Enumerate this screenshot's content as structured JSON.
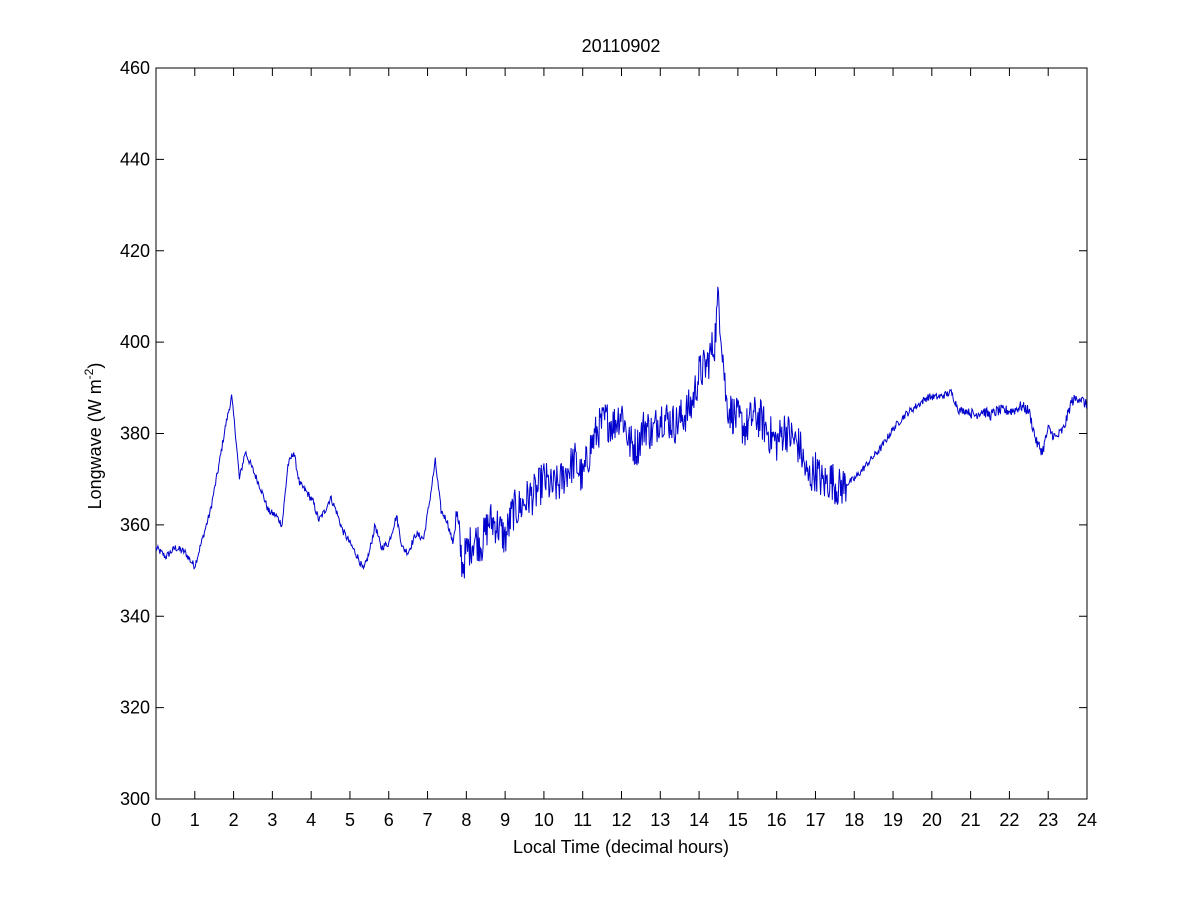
{
  "chart_data": {
    "type": "line",
    "title": "20110902",
    "xlabel": "Local Time (decimal hours)",
    "ylabel": "Longwave (W m-2)",
    "ylabel_parts": {
      "main": "Longwave (W m",
      "sup": "-2",
      "tail": ")"
    },
    "xlim": [
      0,
      24
    ],
    "ylim": [
      300,
      460
    ],
    "xticks": [
      0,
      1,
      2,
      3,
      4,
      5,
      6,
      7,
      8,
      9,
      10,
      11,
      12,
      13,
      14,
      15,
      16,
      17,
      18,
      19,
      20,
      21,
      22,
      23,
      24
    ],
    "yticks": [
      300,
      320,
      340,
      360,
      380,
      400,
      420,
      440,
      460
    ],
    "grid": false,
    "line_color": "#0000cc",
    "series": [
      {
        "x": [
          0,
          0.25,
          0.5,
          0.75,
          0.9,
          1.0,
          1.2,
          1.4,
          1.6,
          1.8,
          1.95,
          2.05,
          2.15,
          2.3,
          2.5,
          2.7,
          2.9,
          3.1,
          3.25,
          3.4,
          3.55,
          3.7,
          3.9,
          4.05,
          4.2,
          4.35,
          4.5,
          4.65,
          4.8,
          5.0,
          5.2,
          5.35,
          5.5,
          5.65,
          5.8,
          6.0,
          6.2,
          6.35,
          6.5,
          6.7,
          6.9,
          7.05,
          7.2,
          7.35,
          7.5,
          7.65,
          7.75,
          7.9,
          8.0,
          8.2,
          8.4,
          8.6,
          8.8,
          9.0,
          9.2,
          9.4,
          9.6,
          9.8,
          10.0,
          10.2,
          10.4,
          10.6,
          10.8,
          11.0,
          11.2,
          11.4,
          11.6,
          11.8,
          12.0,
          12.2,
          12.4,
          12.6,
          12.8,
          13.0,
          13.2,
          13.4,
          13.6,
          13.8,
          14.0,
          14.2,
          14.4,
          14.5,
          14.6,
          14.7,
          14.8,
          15.0,
          15.2,
          15.4,
          15.6,
          15.8,
          16.0,
          16.2,
          16.4,
          16.6,
          16.8,
          17.0,
          17.2,
          17.4,
          17.6,
          17.8,
          18.0,
          18.2,
          18.4,
          18.7,
          19.0,
          19.3,
          19.6,
          19.9,
          20.2,
          20.5,
          20.7,
          20.9,
          21.1,
          21.3,
          21.5,
          21.7,
          21.9,
          22.1,
          22.3,
          22.5,
          22.7,
          22.85,
          23.0,
          23.2,
          23.4,
          23.6,
          23.8,
          24.0
        ],
        "y": [
          355,
          353,
          355,
          354,
          352,
          351,
          357,
          363,
          372,
          382,
          388,
          380,
          370,
          376,
          372,
          368,
          363,
          362,
          360,
          373,
          376,
          369,
          367,
          365,
          361,
          363,
          366,
          363,
          359,
          356,
          353,
          350,
          354,
          360,
          355,
          356,
          362,
          355,
          354,
          358,
          357,
          365,
          374,
          363,
          361,
          356,
          362,
          351,
          354,
          357,
          356,
          361,
          360,
          357,
          363,
          364,
          366,
          367,
          370,
          368,
          369,
          372,
          374,
          370,
          377,
          381,
          383,
          382,
          385,
          378,
          377,
          382,
          380,
          384,
          383,
          382,
          384,
          386,
          393,
          395,
          400,
          410,
          399,
          387,
          385,
          383,
          381,
          384,
          383,
          380,
          378,
          381,
          379,
          377,
          370,
          372,
          369,
          370,
          368,
          369,
          370,
          372,
          374,
          377,
          381,
          384,
          386,
          388,
          388,
          389,
          385,
          385,
          384,
          385,
          384,
          385,
          385,
          385,
          386,
          385,
          378,
          376,
          381,
          379,
          381,
          387,
          388,
          386
        ]
      }
    ]
  }
}
